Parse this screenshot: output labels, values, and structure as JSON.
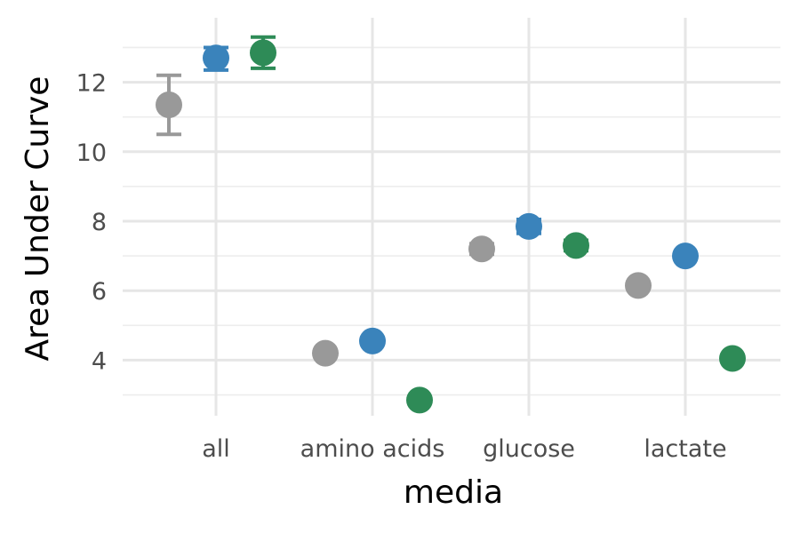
{
  "chart_data": {
    "type": "scatter",
    "xlabel": "media",
    "ylabel": "Area Under Curve",
    "categories": [
      "all",
      "amino acids",
      "glucose",
      "lactate"
    ],
    "ylim": [
      2.4,
      13.6
    ],
    "y_ticks": [
      4,
      6,
      8,
      10,
      12
    ],
    "y_tick_labels": [
      "4",
      "6",
      "8",
      "10",
      "12"
    ],
    "y_minor_ticks": [
      3,
      5,
      7,
      9,
      11,
      13
    ],
    "grid": true,
    "legend": "none",
    "series": [
      {
        "color": "#999999",
        "values": [
          11.35,
          4.2,
          7.2,
          6.15
        ],
        "err_low": [
          10.5,
          4.2,
          7.05,
          6.15
        ],
        "err_high": [
          12.2,
          4.2,
          7.35,
          6.15
        ]
      },
      {
        "color": "#3a83bb",
        "values": [
          12.7,
          4.55,
          7.85,
          7.0
        ],
        "err_low": [
          12.35,
          4.55,
          7.65,
          7.0
        ],
        "err_high": [
          13.0,
          4.55,
          8.05,
          7.0
        ]
      },
      {
        "color": "#2e8b57",
        "values": [
          12.85,
          2.85,
          7.3,
          4.05
        ],
        "err_low": [
          12.4,
          2.85,
          7.15,
          4.05
        ],
        "err_high": [
          13.3,
          2.85,
          7.45,
          4.05
        ]
      }
    ]
  }
}
